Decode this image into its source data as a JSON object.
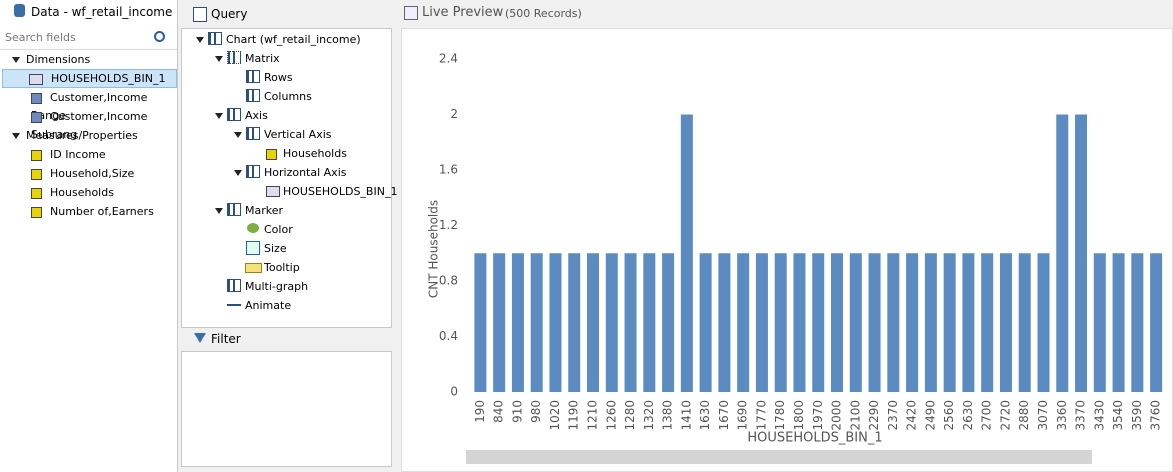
{
  "data_panel": {
    "title": "Data - wf_retail_income",
    "search_placeholder": "Search fields",
    "groups": [
      {
        "label": "Dimensions",
        "items": [
          "HOUSEHOLDS_BIN_1",
          "Customer,Income Range",
          "Customer,Income Subrang"
        ]
      },
      {
        "label": "Measures/Properties",
        "items": [
          "ID Income",
          "Household,Size",
          "Households",
          "Number of,Earners"
        ]
      }
    ]
  },
  "query_panel": {
    "title": "Query",
    "nodes": [
      "Chart (wf_retail_income)",
      "Matrix",
      "Rows",
      "Columns",
      "Axis",
      "Vertical Axis",
      "Households",
      "Horizontal Axis",
      "HOUSEHOLDS_BIN_1",
      "Marker",
      "Color",
      "Size",
      "Tooltip",
      "Multi-graph",
      "Animate"
    ]
  },
  "filter_panel": {
    "title": "Filter"
  },
  "preview": {
    "title": "Live Preview",
    "records": "(500 Records)"
  },
  "chart_data": {
    "type": "bar",
    "x_label": "HOUSEHOLDS_BIN_1",
    "y_label": "CNT Households",
    "color": "#5b8bc1",
    "categories": [
      "190",
      "840",
      "910",
      "980",
      "1020",
      "1190",
      "1210",
      "1260",
      "1280",
      "1320",
      "1380",
      "1410",
      "1630",
      "1670",
      "1690",
      "1770",
      "1780",
      "1800",
      "1970",
      "2000",
      "2100",
      "2290",
      "2370",
      "2420",
      "2490",
      "2560",
      "2630",
      "2700",
      "2720",
      "2880",
      "3070",
      "3360",
      "3370",
      "3430",
      "3540",
      "3590",
      "3760"
    ],
    "values": [
      1,
      1,
      1,
      1,
      1,
      1,
      1,
      1,
      1,
      1,
      1,
      2,
      1,
      1,
      1,
      1,
      1,
      1,
      1,
      1,
      1,
      1,
      1,
      1,
      1,
      1,
      1,
      1,
      1,
      1,
      1,
      2,
      2,
      1,
      1,
      1,
      1
    ],
    "ylim": [
      0,
      2.4
    ],
    "yticks": [
      0,
      0.4,
      0.8,
      1.2,
      1.6,
      2,
      2.4
    ],
    "grid": false
  }
}
